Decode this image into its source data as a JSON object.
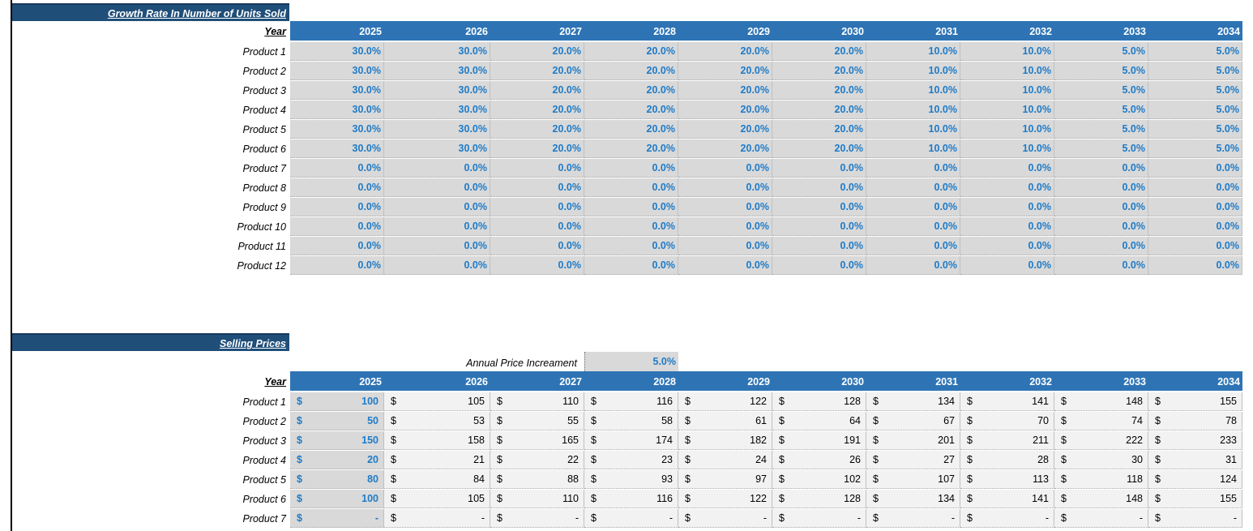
{
  "growth": {
    "title": "Growth Rate In Number of Units Sold",
    "year_label": "Year",
    "years": [
      "2025",
      "2026",
      "2027",
      "2028",
      "2029",
      "2030",
      "2031",
      "2032",
      "2033",
      "2034"
    ],
    "rows": [
      {
        "label": "Product 1",
        "values": [
          "30.0%",
          "30.0%",
          "20.0%",
          "20.0%",
          "20.0%",
          "20.0%",
          "10.0%",
          "10.0%",
          "5.0%",
          "5.0%"
        ]
      },
      {
        "label": "Product 2",
        "values": [
          "30.0%",
          "30.0%",
          "20.0%",
          "20.0%",
          "20.0%",
          "20.0%",
          "10.0%",
          "10.0%",
          "5.0%",
          "5.0%"
        ]
      },
      {
        "label": "Product 3",
        "values": [
          "30.0%",
          "30.0%",
          "20.0%",
          "20.0%",
          "20.0%",
          "20.0%",
          "10.0%",
          "10.0%",
          "5.0%",
          "5.0%"
        ]
      },
      {
        "label": "Product 4",
        "values": [
          "30.0%",
          "30.0%",
          "20.0%",
          "20.0%",
          "20.0%",
          "20.0%",
          "10.0%",
          "10.0%",
          "5.0%",
          "5.0%"
        ]
      },
      {
        "label": "Product 5",
        "values": [
          "30.0%",
          "30.0%",
          "20.0%",
          "20.0%",
          "20.0%",
          "20.0%",
          "10.0%",
          "10.0%",
          "5.0%",
          "5.0%"
        ]
      },
      {
        "label": "Product 6",
        "values": [
          "30.0%",
          "30.0%",
          "20.0%",
          "20.0%",
          "20.0%",
          "20.0%",
          "10.0%",
          "10.0%",
          "5.0%",
          "5.0%"
        ]
      },
      {
        "label": "Product 7",
        "values": [
          "0.0%",
          "0.0%",
          "0.0%",
          "0.0%",
          "0.0%",
          "0.0%",
          "0.0%",
          "0.0%",
          "0.0%",
          "0.0%"
        ]
      },
      {
        "label": "Product 8",
        "values": [
          "0.0%",
          "0.0%",
          "0.0%",
          "0.0%",
          "0.0%",
          "0.0%",
          "0.0%",
          "0.0%",
          "0.0%",
          "0.0%"
        ]
      },
      {
        "label": "Product 9",
        "values": [
          "0.0%",
          "0.0%",
          "0.0%",
          "0.0%",
          "0.0%",
          "0.0%",
          "0.0%",
          "0.0%",
          "0.0%",
          "0.0%"
        ]
      },
      {
        "label": "Product 10",
        "values": [
          "0.0%",
          "0.0%",
          "0.0%",
          "0.0%",
          "0.0%",
          "0.0%",
          "0.0%",
          "0.0%",
          "0.0%",
          "0.0%"
        ]
      },
      {
        "label": "Product 11",
        "values": [
          "0.0%",
          "0.0%",
          "0.0%",
          "0.0%",
          "0.0%",
          "0.0%",
          "0.0%",
          "0.0%",
          "0.0%",
          "0.0%"
        ]
      },
      {
        "label": "Product 12",
        "values": [
          "0.0%",
          "0.0%",
          "0.0%",
          "0.0%",
          "0.0%",
          "0.0%",
          "0.0%",
          "0.0%",
          "0.0%",
          "0.0%"
        ]
      }
    ]
  },
  "prices": {
    "title": "Selling Prices",
    "increment_label": "Annual Price Increament",
    "increment_value": "5.0%",
    "year_label": "Year",
    "currency": "$",
    "years": [
      "2025",
      "2026",
      "2027",
      "2028",
      "2029",
      "2030",
      "2031",
      "2032",
      "2033",
      "2034"
    ],
    "rows": [
      {
        "label": "Product 1",
        "values": [
          "100",
          "105",
          "110",
          "116",
          "122",
          "128",
          "134",
          "141",
          "148",
          "155"
        ]
      },
      {
        "label": "Product 2",
        "values": [
          "50",
          "53",
          "55",
          "58",
          "61",
          "64",
          "67",
          "70",
          "74",
          "78"
        ]
      },
      {
        "label": "Product 3",
        "values": [
          "150",
          "158",
          "165",
          "174",
          "182",
          "191",
          "201",
          "211",
          "222",
          "233"
        ]
      },
      {
        "label": "Product 4",
        "values": [
          "20",
          "21",
          "22",
          "23",
          "24",
          "26",
          "27",
          "28",
          "30",
          "31"
        ]
      },
      {
        "label": "Product 5",
        "values": [
          "80",
          "84",
          "88",
          "93",
          "97",
          "102",
          "107",
          "113",
          "118",
          "124"
        ]
      },
      {
        "label": "Product 6",
        "values": [
          "100",
          "105",
          "110",
          "116",
          "122",
          "128",
          "134",
          "141",
          "148",
          "155"
        ]
      },
      {
        "label": "Product 7",
        "values": [
          "-",
          "-",
          "-",
          "-",
          "-",
          "-",
          "-",
          "-",
          "-",
          "-"
        ]
      }
    ]
  },
  "colors": {
    "section_header": "#1f4e79",
    "year_header": "#2e74b5",
    "input_blue": "#1f7bc7"
  }
}
